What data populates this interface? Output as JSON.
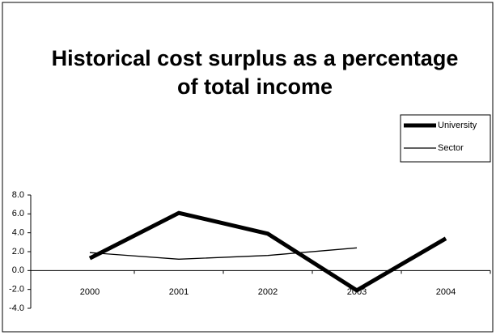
{
  "chart_data": {
    "type": "line",
    "title": [
      "Historical cost surplus as a percentage",
      "of total income"
    ],
    "categories": [
      "2000",
      "2001",
      "2002",
      "2003",
      "2004"
    ],
    "series": [
      {
        "name": "University",
        "color": "#000000",
        "values": [
          1.3,
          6.1,
          3.9,
          -2.1,
          3.4
        ]
      },
      {
        "name": "Sector",
        "color": "#000000",
        "values": [
          1.9,
          1.2,
          1.6,
          2.4,
          null
        ]
      }
    ],
    "ylim": [
      -4,
      8
    ],
    "yticks": [
      {
        "value": 8,
        "label": "8.0"
      },
      {
        "value": 6,
        "label": "6.0"
      },
      {
        "value": 4,
        "label": "4.0"
      },
      {
        "value": 2,
        "label": "2.0"
      },
      {
        "value": 0,
        "label": "0.0"
      },
      {
        "value": -2,
        "label": "-2.0"
      },
      {
        "value": -4,
        "label": "-4.0"
      }
    ],
    "legend": "upper right"
  }
}
